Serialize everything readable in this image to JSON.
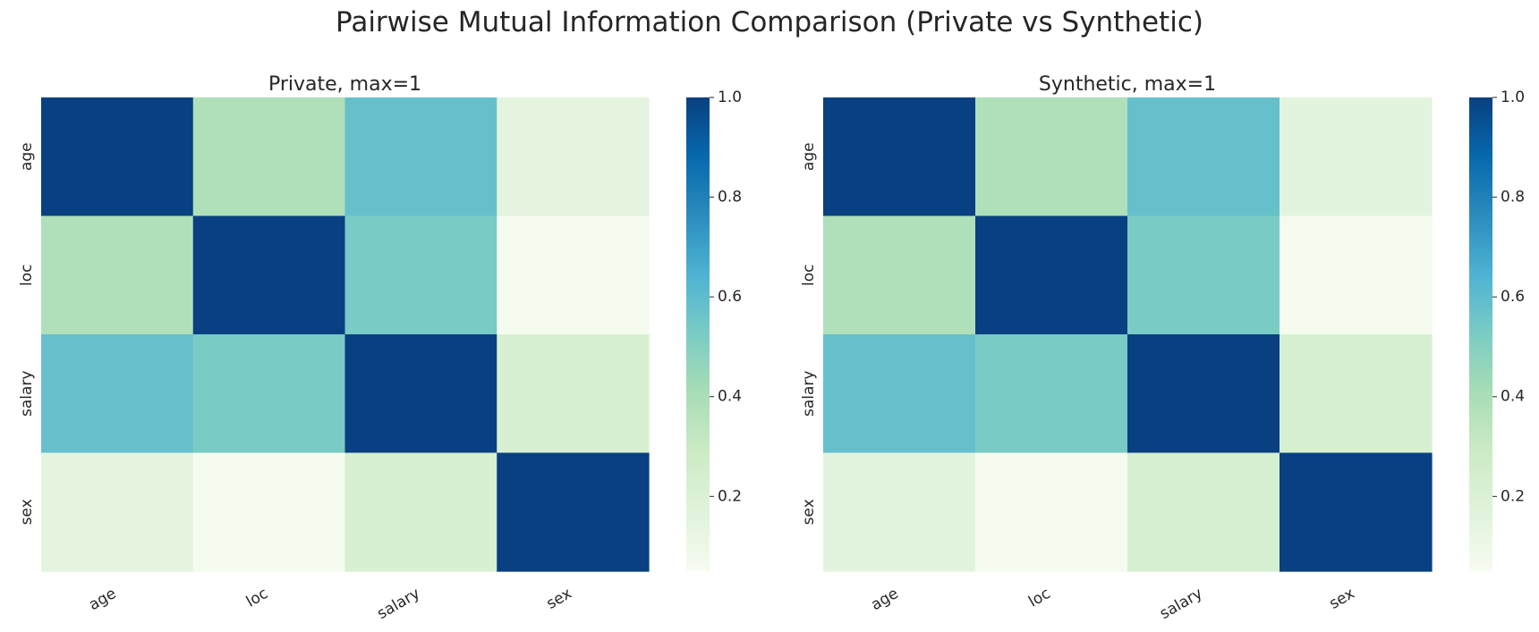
{
  "figure": {
    "title": "Pairwise Mutual Information Comparison (Private vs Synthetic)"
  },
  "chart_data": [
    {
      "type": "heatmap",
      "title": "Private, max=1",
      "xlabel": "",
      "ylabel": "",
      "x_categories": [
        "age",
        "loc",
        "salary",
        "sex"
      ],
      "y_categories": [
        "age",
        "loc",
        "salary",
        "sex"
      ],
      "values": [
        [
          1.0,
          0.38,
          0.58,
          0.15
        ],
        [
          0.38,
          1.0,
          0.53,
          0.06
        ],
        [
          0.58,
          0.53,
          1.0,
          0.22
        ],
        [
          0.15,
          0.06,
          0.22,
          1.0
        ]
      ],
      "colormap": "GnBu",
      "colorbar": {
        "vmin": 0.05,
        "vmax": 1.0,
        "ticks": [
          0.2,
          0.4,
          0.6,
          0.8,
          1.0
        ],
        "tick_labels": [
          "0.2",
          "0.4",
          "0.6",
          "0.8",
          "1.0"
        ]
      }
    },
    {
      "type": "heatmap",
      "title": "Synthetic, max=1",
      "xlabel": "",
      "ylabel": "",
      "x_categories": [
        "age",
        "loc",
        "salary",
        "sex"
      ],
      "y_categories": [
        "age",
        "loc",
        "salary",
        "sex"
      ],
      "values": [
        [
          1.0,
          0.38,
          0.58,
          0.16
        ],
        [
          0.38,
          1.0,
          0.53,
          0.06
        ],
        [
          0.58,
          0.53,
          1.0,
          0.23
        ],
        [
          0.16,
          0.06,
          0.23,
          1.0
        ]
      ],
      "colormap": "GnBu",
      "colorbar": {
        "vmin": 0.05,
        "vmax": 1.0,
        "ticks": [
          0.2,
          0.4,
          0.6,
          0.8,
          1.0
        ],
        "tick_labels": [
          "0.2",
          "0.4",
          "0.6",
          "0.8",
          "1.0"
        ]
      }
    }
  ]
}
